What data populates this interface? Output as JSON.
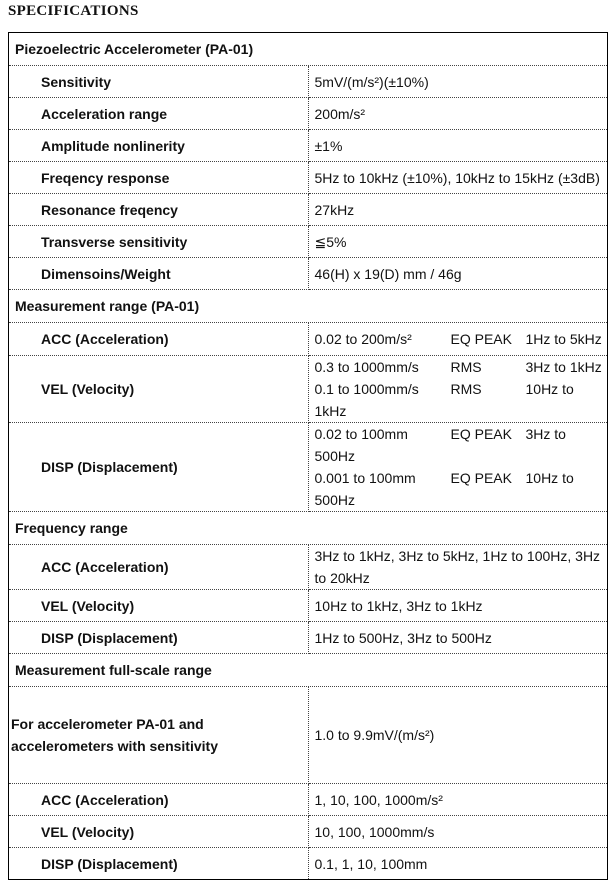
{
  "title": "SPECIFICATIONS",
  "sections": [
    {
      "title": "Piezoelectric Accelerometer (PA-01)",
      "rows": [
        {
          "label": "Sensitivity",
          "value": "5mV/(m/s²)(±10%)"
        },
        {
          "label": "Acceleration range",
          "value": "200m/s²"
        },
        {
          "label": "Amplitude nonlinerity",
          "value": "±1%"
        },
        {
          "label": "Freqency response",
          "value": "5Hz to 10kHz (±10%), 10kHz to 15kHz (±3dB)"
        },
        {
          "label": "Resonance freqency",
          "value": "27kHz"
        },
        {
          "label": "Transverse sensitivity",
          "value": "≦5%"
        },
        {
          "label": "Dimensoins/Weight",
          "value": "46(H) x 19(D) mm / 46g"
        }
      ]
    },
    {
      "title": "Measurement range (PA-01)",
      "rows": [
        {
          "label": "ACC (Acceleration)",
          "lines": [
            [
              "0.02 to 200m/s²",
              "EQ PEAK",
              "1Hz to 5kHz"
            ]
          ]
        },
        {
          "label": "VEL (Velocity)",
          "lines": [
            [
              "0.3 to 1000mm/s",
              "RMS",
              "3Hz to 1kHz"
            ],
            [
              "0.1 to 1000mm/s",
              "RMS",
              "10Hz to 1kHz"
            ]
          ]
        },
        {
          "label": "DISP (Displacement)",
          "lines": [
            [
              "0.02 to 100mm",
              "EQ PEAK",
              "3Hz to 500Hz"
            ],
            [
              "0.001 to 100mm",
              "EQ PEAK",
              "10Hz to 500Hz"
            ]
          ]
        }
      ]
    },
    {
      "title": "Frequency range",
      "rows": [
        {
          "label": "ACC (Acceleration)",
          "value": "3Hz to 1kHz, 3Hz to 5kHz, 1Hz to 100Hz, 3Hz to 20kHz"
        },
        {
          "label": "VEL (Velocity)",
          "value": "10Hz to 1kHz, 3Hz to 1kHz"
        },
        {
          "label": "DISP (Displacement)",
          "value": "1Hz to 500Hz, 3Hz to 500Hz"
        }
      ]
    },
    {
      "title": "Measurement full-scale range",
      "rows": [
        {
          "label": "For accelerometer PA-01 and accelerometers with sensitivity",
          "value": "1.0 to 9.9mV/(m/s²)"
        },
        {
          "label": "ACC (Acceleration)",
          "value": "1, 10, 100, 1000m/s²"
        },
        {
          "label": "VEL (Velocity)",
          "value": "10, 100, 1000mm/s"
        },
        {
          "label": "DISP (Displacement)",
          "value": "0.1, 1, 10, 100mm"
        }
      ]
    }
  ]
}
